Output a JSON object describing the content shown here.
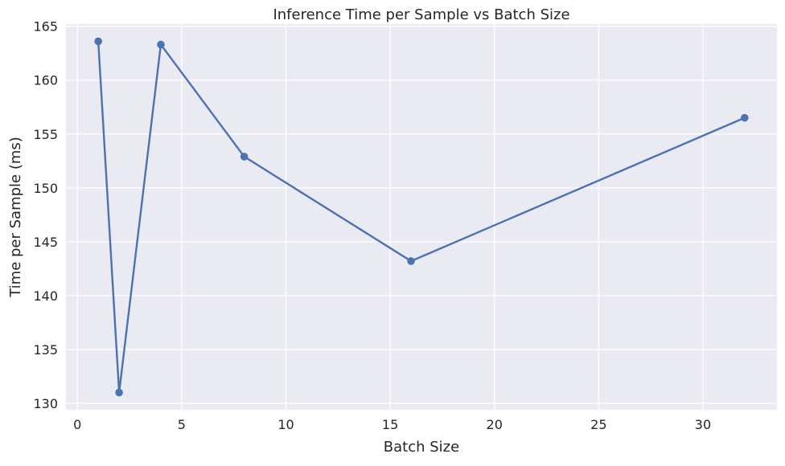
{
  "chart_data": {
    "type": "line",
    "title": "Inference Time per Sample vs Batch Size",
    "xlabel": "Batch Size",
    "ylabel": "Time per Sample (ms)",
    "x": [
      1,
      2,
      4,
      8,
      16,
      32
    ],
    "series": [
      {
        "values": [
          163.6,
          131.0,
          163.3,
          152.9,
          143.2,
          156.5
        ],
        "color": "#4c72b0"
      }
    ],
    "xlim": [
      -0.55,
      33.55
    ],
    "ylim": [
      129.4,
      165.2
    ],
    "xticks": [
      0,
      5,
      10,
      15,
      20,
      25,
      30
    ],
    "yticks": [
      130,
      135,
      140,
      145,
      150,
      155,
      160,
      165
    ],
    "grid": true,
    "legend": "none",
    "style": {
      "plot_background": "#eaeaf2",
      "grid_color": "#ffffff",
      "line_color": "#4c72b0"
    }
  }
}
